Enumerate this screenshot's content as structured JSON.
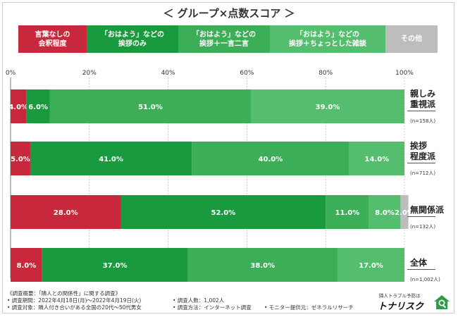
{
  "title": "＜ グループ×点数スコア ＞",
  "legend": [
    {
      "label": "言葉なしの\n会釈程度",
      "color": "#c8283c"
    },
    {
      "label": "「おはよう」などの\n挨拶のみ",
      "color": "#1a9a3e"
    },
    {
      "label": "「おはよう」などの\n挨拶＋一言二言",
      "color": "#3dae58"
    },
    {
      "label": "「おはよう」などの\n挨拶＋ちょっとした雑談",
      "color": "#55bd6e"
    },
    {
      "label": "その他",
      "color": "#bdbdbd"
    }
  ],
  "chart_data": {
    "type": "bar",
    "orientation": "horizontal",
    "stacked": true,
    "title": "＜ グループ×点数スコア ＞",
    "x_ticks": [
      "0%",
      "20%",
      "40%",
      "60%",
      "80%",
      "100%"
    ],
    "xlim": [
      0,
      100
    ],
    "categories": [
      "親しみ\n重視派",
      "挨拶\n程度派",
      "無関係派",
      "全体"
    ],
    "sample_sizes": [
      "(n=158人)",
      "(n=712人)",
      "(n=132人)",
      "(n=1,002人)"
    ],
    "series": [
      {
        "name": "言葉なしの会釈程度",
        "values": [
          4.0,
          5.0,
          28.0,
          8.0
        ]
      },
      {
        "name": "「おはよう」などの挨拶のみ",
        "values": [
          6.0,
          41.0,
          52.0,
          37.0
        ]
      },
      {
        "name": "「おはよう」などの挨拶＋一言二言",
        "values": [
          51.0,
          40.0,
          11.0,
          38.0
        ]
      },
      {
        "name": "「おはよう」などの挨拶＋ちょっとした雑談",
        "values": [
          39.0,
          14.0,
          8.0,
          17.0
        ]
      },
      {
        "name": "その他",
        "values": [
          0,
          0,
          2.0,
          0
        ]
      }
    ],
    "value_labels": [
      [
        "4.0%",
        "6.0%",
        "51.0%",
        "39.0%",
        ""
      ],
      [
        "5.0%",
        "41.0%",
        "40.0%",
        "14.0%",
        ""
      ],
      [
        "28.0%",
        "52.0%",
        "11.0%",
        "8.0%",
        "2.0%"
      ],
      [
        "8.0%",
        "37.0%",
        "38.0%",
        "17.0%",
        ""
      ]
    ]
  },
  "footer": {
    "overview": "《調査概要：「隣人との関係性」に関する調査》",
    "period": "• 調査期間：2022年4月18日(月)～2022年4月19日(火)",
    "count": "• 調査人数：1,002人",
    "target": "• 調査対象：隣人付き合いがある全国の20代～50代男女",
    "method": "• 調査方法：インターネット調査",
    "provider": "• モニター提供元：ゼネラルリサーチ"
  },
  "logo": {
    "tagline": "隣人トラブル予防は",
    "brand": "トナリスク",
    "color": "#2e9a4a"
  }
}
